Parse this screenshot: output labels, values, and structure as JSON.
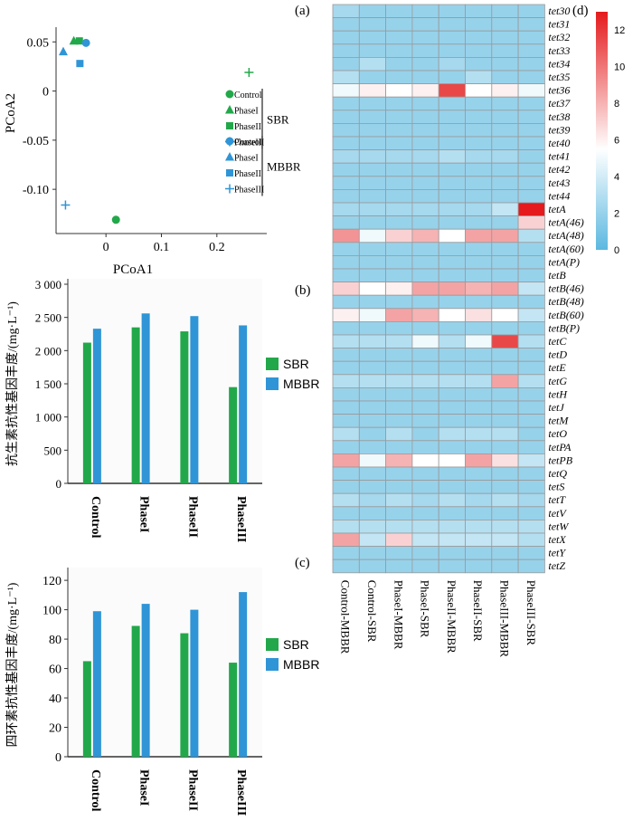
{
  "panel_labels": {
    "a": "(a)",
    "b": "(b)",
    "c": "(c)",
    "d": "(d)"
  },
  "colors": {
    "sbr": "#22a84a",
    "mbbr": "#2f95d6",
    "plus": "#2f95d6"
  },
  "chart_data": [
    {
      "id": "pcoa",
      "type": "scatter",
      "xlabel": "PCoA1",
      "ylabel": "PCoA2",
      "xlim": [
        -0.09,
        0.29
      ],
      "ylim": [
        -0.145,
        0.065
      ],
      "xticks": [
        0,
        0.1,
        0.2
      ],
      "xtick_labels": [
        "0",
        "0.1",
        "0.2"
      ],
      "yticks": [
        0.05,
        0,
        -0.05,
        -0.1
      ],
      "ytick_labels": [
        "0.05",
        "0",
        "-0.05",
        "-0.10"
      ],
      "legend": {
        "groups": [
          {
            "name": "SBR",
            "items": [
              {
                "label": "Control",
                "marker": "circle",
                "color": "#22a84a"
              },
              {
                "label": "PhaseI",
                "marker": "triangle",
                "color": "#22a84a"
              },
              {
                "label": "PhaseII",
                "marker": "square",
                "color": "#22a84a"
              },
              {
                "label": "PhaseIII",
                "marker": "plus",
                "color": "#22a84a"
              }
            ]
          },
          {
            "name": "MBBR",
            "items": [
              {
                "label": "Control",
                "marker": "circle",
                "color": "#2f95d6"
              },
              {
                "label": "PhaseI",
                "marker": "triangle",
                "color": "#2f95d6"
              },
              {
                "label": "PhaseII",
                "marker": "square",
                "color": "#2f95d6"
              },
              {
                "label": "PhaseIII",
                "marker": "plus",
                "color": "#2f95d6"
              }
            ]
          }
        ]
      },
      "points": [
        {
          "group": "SBR",
          "sample": "Control",
          "marker": "circle",
          "x": 0.018,
          "y": -0.131
        },
        {
          "group": "SBR",
          "sample": "PhaseI",
          "marker": "triangle",
          "x": -0.058,
          "y": 0.051
        },
        {
          "group": "SBR",
          "sample": "PhaseII",
          "marker": "square",
          "x": -0.048,
          "y": 0.051
        },
        {
          "group": "SBR",
          "sample": "PhaseIII",
          "marker": "plus",
          "x": 0.258,
          "y": 0.019
        },
        {
          "group": "MBBR",
          "sample": "Control",
          "marker": "circle",
          "x": -0.036,
          "y": 0.049
        },
        {
          "group": "MBBR",
          "sample": "PhaseI",
          "marker": "triangle",
          "x": -0.077,
          "y": 0.04
        },
        {
          "group": "MBBR",
          "sample": "PhaseII",
          "marker": "square",
          "x": -0.047,
          "y": 0.028
        },
        {
          "group": "MBBR",
          "sample": "PhaseIII",
          "marker": "plus",
          "x": -0.073,
          "y": -0.116
        }
      ]
    },
    {
      "id": "antibiotic-genes",
      "type": "bar",
      "categories": [
        "Control",
        "PhaseI",
        "PhaseII",
        "PhaseIII"
      ],
      "series": [
        {
          "name": "SBR",
          "values": [
            2120,
            2350,
            2290,
            1450
          ]
        },
        {
          "name": "MBBR",
          "values": [
            2330,
            2560,
            2520,
            2380
          ]
        }
      ],
      "ylabel": "抗生素抗性基因丰度/(mg·L⁻¹)",
      "ylim": [
        0,
        3000
      ],
      "yticks": [
        0,
        500,
        1000,
        1500,
        2000,
        2500,
        3000
      ],
      "ytick_labels": [
        "0",
        "500",
        "1 000",
        "1 500",
        "2 000",
        "2 500",
        "3 000"
      ],
      "legend_position": "right"
    },
    {
      "id": "tetracycline-genes",
      "type": "bar",
      "categories": [
        "Control",
        "PhaseI",
        "PhaseII",
        "PhaseIII"
      ],
      "series": [
        {
          "name": "SBR",
          "values": [
            65,
            89,
            84,
            64
          ]
        },
        {
          "name": "MBBR",
          "values": [
            99,
            104,
            100,
            112
          ]
        }
      ],
      "ylabel": "四环素抗性基因丰度/(mg·L⁻¹)",
      "ylim": [
        0,
        125
      ],
      "yticks": [
        0,
        20,
        40,
        60,
        80,
        100,
        120
      ],
      "ytick_labels": [
        "0",
        "20",
        "40",
        "60",
        "80",
        "100",
        "120"
      ],
      "legend_position": "right"
    },
    {
      "id": "heatmap",
      "type": "heatmap",
      "columns": [
        "Control-MBBR",
        "Control-SBR",
        "PhaseI-MBBR",
        "PhaseI-SBR",
        "PhaseII-MBBR",
        "PhaseII-SBR",
        "PhaseIII-MBBR",
        "PhaseIII-SBR"
      ],
      "rows": [
        "tet30",
        "tet31",
        "tet32",
        "tet33",
        "tet34",
        "tet35",
        "tet36",
        "tet37",
        "tet38",
        "tet39",
        "tet40",
        "tet41",
        "tet42",
        "tet43",
        "tet44",
        "tetA",
        "tetA(46)",
        "tetA(48)",
        "tetA(60)",
        "tetA(P)",
        "tetB",
        "tetB(46)",
        "tetB(48)",
        "tetB(60)",
        "tetB(P)",
        "tetC",
        "tetD",
        "tetE",
        "tetG",
        "tetH",
        "tetJ",
        "tetM",
        "tetO",
        "tetPA",
        "tetPB",
        "tetQ",
        "tetS",
        "tetT",
        "tetV",
        "tetW",
        "tetX",
        "tetY",
        "tetZ"
      ],
      "values": [
        [
          2.5,
          2.0,
          2.0,
          2.0,
          2.0,
          2.0,
          2.0,
          2.0
        ],
        [
          2.0,
          2.0,
          2.0,
          2.0,
          2.0,
          2.0,
          2.0,
          2.0
        ],
        [
          2.0,
          2.0,
          2.0,
          2.0,
          2.0,
          2.0,
          2.0,
          2.0
        ],
        [
          2.0,
          2.0,
          2.0,
          2.0,
          2.0,
          2.0,
          2.0,
          2.0
        ],
        [
          2.0,
          3.0,
          2.0,
          2.0,
          2.5,
          2.0,
          2.0,
          2.0
        ],
        [
          3.0,
          2.0,
          2.0,
          2.0,
          2.0,
          3.0,
          2.0,
          2.0
        ],
        [
          5.0,
          6.0,
          5.5,
          6.0,
          11.5,
          5.5,
          6.0,
          5.0
        ],
        [
          2.0,
          2.0,
          2.0,
          2.0,
          2.0,
          2.0,
          2.0,
          2.0
        ],
        [
          2.0,
          2.0,
          2.0,
          2.0,
          2.0,
          2.0,
          2.0,
          2.0
        ],
        [
          2.0,
          2.0,
          2.0,
          2.0,
          2.0,
          2.0,
          2.0,
          2.0
        ],
        [
          2.0,
          2.0,
          2.0,
          2.0,
          2.0,
          2.0,
          2.0,
          2.0
        ],
        [
          2.5,
          2.5,
          2.5,
          2.5,
          3.0,
          2.5,
          2.5,
          2.0
        ],
        [
          2.0,
          2.0,
          2.0,
          2.0,
          2.0,
          2.0,
          2.0,
          2.0
        ],
        [
          2.0,
          2.0,
          2.0,
          2.0,
          2.0,
          2.0,
          2.0,
          2.0
        ],
        [
          2.0,
          2.0,
          2.0,
          2.0,
          2.0,
          2.0,
          2.0,
          2.0
        ],
        [
          2.5,
          2.5,
          2.5,
          2.5,
          2.5,
          2.5,
          3.5,
          13.0
        ],
        [
          2.0,
          2.0,
          2.0,
          2.0,
          2.0,
          2.0,
          2.0,
          7.0
        ],
        [
          9.0,
          5.0,
          7.0,
          8.0,
          5.5,
          8.5,
          8.5,
          3.0
        ],
        [
          2.0,
          2.0,
          2.0,
          2.0,
          2.0,
          2.0,
          2.0,
          2.0
        ],
        [
          2.0,
          2.0,
          2.0,
          2.0,
          2.0,
          2.0,
          2.0,
          2.0
        ],
        [
          2.0,
          2.0,
          2.0,
          2.0,
          2.0,
          2.0,
          2.0,
          2.0
        ],
        [
          7.0,
          5.5,
          6.0,
          8.5,
          8.5,
          8.0,
          8.5,
          3.5
        ],
        [
          2.0,
          2.0,
          2.0,
          2.0,
          2.0,
          2.0,
          2.0,
          2.0
        ],
        [
          6.0,
          5.0,
          8.5,
          8.0,
          5.5,
          6.5,
          5.5,
          3.5
        ],
        [
          2.0,
          2.0,
          2.0,
          2.0,
          2.0,
          2.0,
          2.0,
          2.0
        ],
        [
          3.0,
          3.0,
          3.0,
          5.0,
          3.0,
          5.0,
          11.5,
          3.0
        ],
        [
          2.0,
          2.0,
          2.0,
          2.0,
          2.0,
          2.0,
          2.0,
          2.0
        ],
        [
          2.0,
          2.0,
          2.0,
          2.0,
          2.0,
          2.0,
          2.0,
          2.0
        ],
        [
          3.0,
          3.0,
          3.0,
          3.0,
          3.0,
          3.0,
          8.5,
          3.0
        ],
        [
          2.0,
          2.0,
          2.0,
          2.0,
          2.0,
          2.0,
          2.0,
          2.0
        ],
        [
          2.0,
          2.0,
          2.0,
          2.0,
          2.0,
          2.0,
          2.0,
          2.0
        ],
        [
          2.0,
          2.0,
          2.0,
          2.0,
          2.0,
          2.0,
          2.0,
          2.0
        ],
        [
          3.0,
          2.0,
          3.0,
          2.0,
          3.0,
          3.0,
          3.0,
          2.0
        ],
        [
          2.0,
          2.0,
          2.0,
          2.0,
          2.0,
          2.0,
          2.0,
          2.0
        ],
        [
          8.5,
          5.0,
          8.0,
          5.5,
          5.5,
          8.5,
          6.5,
          3.5
        ],
        [
          2.0,
          2.0,
          2.0,
          2.0,
          2.0,
          2.0,
          2.0,
          2.0
        ],
        [
          2.0,
          2.0,
          2.0,
          2.0,
          2.0,
          2.0,
          2.0,
          2.0
        ],
        [
          3.0,
          2.5,
          3.0,
          2.5,
          3.0,
          2.5,
          3.0,
          2.5
        ],
        [
          2.0,
          2.0,
          2.0,
          2.0,
          2.0,
          2.0,
          2.0,
          2.0
        ],
        [
          3.0,
          3.0,
          3.0,
          3.0,
          3.0,
          3.0,
          3.0,
          3.0
        ],
        [
          8.5,
          3.5,
          7.0,
          3.5,
          3.5,
          3.5,
          3.5,
          3.0
        ],
        [
          2.0,
          2.0,
          2.0,
          2.0,
          2.0,
          2.0,
          2.0,
          2.0
        ],
        [
          2.0,
          2.0,
          2.0,
          2.0,
          2.0,
          2.0,
          2.0,
          2.0
        ]
      ],
      "colorbar": {
        "ticks": [
          0,
          2,
          4,
          6,
          8,
          10,
          12
        ],
        "tick_labels": [
          "0",
          "2",
          "4",
          "6",
          "8",
          "10",
          "12"
        ],
        "range": [
          0,
          13
        ],
        "colors": [
          "#5bb8e0",
          "#ffffff",
          "#e41a1c"
        ]
      }
    }
  ]
}
